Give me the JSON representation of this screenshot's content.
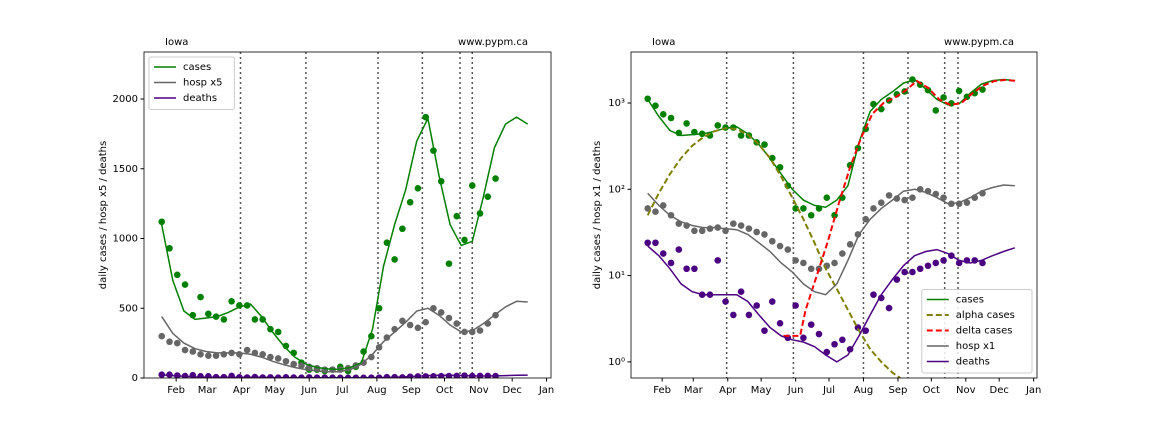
{
  "chart_data": [
    {
      "type": "line",
      "title": "Iowa",
      "annotation": "www.pypm.ca",
      "ylabel": "daily cases / hosp x5 / deaths",
      "yscale": "linear",
      "xlim": [
        2,
        369
      ],
      "ylim": [
        0,
        2337
      ],
      "yticks": [
        0,
        500,
        1000,
        1500,
        2000
      ],
      "xticks": [
        {
          "value": 31,
          "label": "Feb"
        },
        {
          "value": 59,
          "label": "Mar"
        },
        {
          "value": 90,
          "label": "Apr"
        },
        {
          "value": 120,
          "label": "May"
        },
        {
          "value": 151,
          "label": "Jun"
        },
        {
          "value": 181,
          "label": "Jul"
        },
        {
          "value": 212,
          "label": "Aug"
        },
        {
          "value": 243,
          "label": "Sep"
        },
        {
          "value": 273,
          "label": "Oct"
        },
        {
          "value": 304,
          "label": "Nov"
        },
        {
          "value": 334,
          "label": "Dec"
        },
        {
          "value": 365,
          "label": "Jan"
        }
      ],
      "vlines": [
        89,
        148,
        213,
        253,
        287,
        298
      ],
      "legend": "upper left",
      "series": [
        {
          "name": "cases",
          "color": "#008000",
          "dash": false,
          "x": [
            18,
            28,
            38,
            48,
            58,
            68,
            78,
            88,
            98,
            108,
            118,
            128,
            138,
            148,
            158,
            168,
            178,
            188,
            198,
            208,
            218,
            228,
            238,
            248,
            258,
            268,
            278,
            288,
            298,
            308,
            318,
            328,
            338,
            348
          ],
          "values": [
            1100,
            700,
            480,
            420,
            430,
            440,
            470,
            510,
            530,
            440,
            330,
            230,
            150,
            100,
            75,
            65,
            62,
            75,
            110,
            350,
            800,
            1100,
            1350,
            1700,
            1860,
            1450,
            1100,
            950,
            980,
            1300,
            1650,
            1820,
            1870,
            1820
          ]
        },
        {
          "name": "hosp x5",
          "color": "#666666",
          "dash": false,
          "x": [
            18,
            28,
            38,
            48,
            58,
            68,
            78,
            88,
            98,
            108,
            118,
            128,
            138,
            148,
            158,
            168,
            178,
            188,
            198,
            208,
            218,
            228,
            238,
            248,
            258,
            268,
            278,
            288,
            298,
            308,
            318,
            328,
            338,
            348
          ],
          "values": [
            440,
            320,
            250,
            210,
            190,
            180,
            180,
            180,
            170,
            150,
            120,
            95,
            75,
            60,
            50,
            45,
            45,
            60,
            100,
            170,
            260,
            330,
            400,
            480,
            500,
            450,
            380,
            330,
            340,
            390,
            450,
            510,
            550,
            545
          ]
        },
        {
          "name": "deaths",
          "color": "#4b0082",
          "dash": false,
          "x": [
            18,
            28,
            38,
            48,
            58,
            68,
            78,
            88,
            98,
            108,
            118,
            128,
            138,
            148,
            158,
            168,
            178,
            188,
            198,
            208,
            218,
            228,
            238,
            248,
            258,
            268,
            278,
            288,
            298,
            308,
            318,
            328,
            338,
            348
          ],
          "values": [
            22,
            17,
            12,
            8,
            6.5,
            6,
            6,
            6,
            6,
            5,
            3.5,
            2.5,
            2,
            1.8,
            1.7,
            1.5,
            1.2,
            1,
            1.2,
            2,
            3.5,
            6,
            9,
            13,
            17,
            19,
            20,
            18,
            15,
            14,
            15,
            17,
            19,
            21
          ]
        }
      ],
      "point_x": [
        18,
        25,
        32,
        39,
        46,
        53,
        60,
        67,
        74,
        81,
        88,
        95,
        102,
        109,
        116,
        123,
        130,
        137,
        144,
        151,
        158,
        165,
        172,
        179,
        186,
        193,
        200,
        207,
        214,
        221,
        228,
        235,
        242,
        249,
        256,
        263,
        270,
        277,
        284,
        291,
        298,
        305,
        312,
        319
      ],
      "points": [
        {
          "color": "#008000",
          "values": [
            1120,
            930,
            740,
            670,
            450,
            580,
            460,
            440,
            420,
            550,
            520,
            520,
            420,
            420,
            350,
            330,
            230,
            180,
            110,
            60,
            60,
            50,
            60,
            80,
            50,
            80,
            190,
            300,
            500,
            970,
            850,
            1070,
            1260,
            1360,
            1870,
            1630,
            1410,
            820,
            1160,
            990,
            1380,
            1180,
            1300,
            1430
          ]
        },
        {
          "color": "#666666",
          "values": [
            300,
            260,
            250,
            200,
            190,
            170,
            160,
            160,
            170,
            180,
            170,
            200,
            180,
            170,
            150,
            140,
            120,
            100,
            90,
            80,
            70,
            60,
            60,
            60,
            70,
            90,
            110,
            150,
            220,
            290,
            350,
            410,
            380,
            360,
            400,
            500,
            470,
            430,
            390,
            330,
            330,
            340,
            390,
            450
          ]
        },
        {
          "color": "#4b0082",
          "values": [
            24,
            24,
            18,
            14,
            20,
            12,
            12,
            6,
            6,
            15,
            5,
            3.5,
            6.5,
            3.5,
            4.5,
            2.3,
            5,
            2.8,
            1.9,
            4.5,
            1.9,
            2.7,
            2.1,
            1.3,
            1.6,
            1.8,
            1.4,
            2.5,
            2.3,
            6,
            5.5,
            4.2,
            9,
            11,
            11,
            12,
            13,
            14,
            15,
            17,
            14,
            15,
            15,
            14
          ]
        }
      ]
    },
    {
      "type": "line",
      "title": "Iowa",
      "annotation": "www.pypm.ca",
      "ylabel": "daily cases / hosp x1 / deaths",
      "yscale": "log",
      "xlim": [
        3,
        368
      ],
      "ylim": [
        0.65,
        3900
      ],
      "yticks": [
        {
          "value": 1,
          "label": "10⁰"
        },
        {
          "value": 10,
          "label": "10¹"
        },
        {
          "value": 100,
          "label": "10²"
        },
        {
          "value": 1000,
          "label": "10³"
        }
      ],
      "xticks": [
        {
          "value": 31,
          "label": "Feb"
        },
        {
          "value": 59,
          "label": "Mar"
        },
        {
          "value": 90,
          "label": "Apr"
        },
        {
          "value": 120,
          "label": "May"
        },
        {
          "value": 151,
          "label": "Jun"
        },
        {
          "value": 181,
          "label": "Jul"
        },
        {
          "value": 212,
          "label": "Aug"
        },
        {
          "value": 243,
          "label": "Sep"
        },
        {
          "value": 273,
          "label": "Oct"
        },
        {
          "value": 304,
          "label": "Nov"
        },
        {
          "value": 334,
          "label": "Dec"
        },
        {
          "value": 365,
          "label": "Jan"
        }
      ],
      "vlines": [
        89,
        149,
        212,
        252,
        285,
        297
      ],
      "legend": "lower right",
      "series": [
        {
          "name": "cases",
          "color": "#008000",
          "dash": false,
          "x": [
            18,
            28,
            38,
            48,
            58,
            68,
            78,
            88,
            98,
            108,
            118,
            128,
            138,
            148,
            158,
            168,
            178,
            188,
            198,
            208,
            218,
            228,
            238,
            248,
            258,
            268,
            278,
            288,
            298,
            308,
            318,
            328,
            338,
            348
          ],
          "values": [
            1100,
            700,
            480,
            420,
            430,
            440,
            470,
            510,
            530,
            440,
            330,
            230,
            150,
            100,
            75,
            65,
            62,
            75,
            110,
            350,
            800,
            1100,
            1350,
            1700,
            1860,
            1450,
            1100,
            950,
            980,
            1300,
            1650,
            1820,
            1870,
            1820
          ]
        },
        {
          "name": "alpha cases",
          "color": "#808000",
          "dash": true,
          "x": [
            18,
            28,
            38,
            48,
            58,
            68,
            78,
            88,
            98,
            108,
            118,
            128,
            138,
            148,
            158,
            168,
            178,
            188,
            198,
            208,
            218,
            228,
            238,
            245
          ],
          "values": [
            50,
            90,
            150,
            230,
            320,
            400,
            470,
            510,
            500,
            430,
            330,
            230,
            140,
            80,
            45,
            24,
            12,
            7,
            4,
            2.3,
            1.4,
            1,
            0.75,
            0.65
          ]
        },
        {
          "name": "delta cases",
          "color": "#ff0000",
          "dash": true,
          "x": [
            140,
            155,
            160,
            170,
            180,
            190,
            200,
            210,
            220,
            230,
            240,
            250,
            260,
            270,
            280,
            290,
            300,
            310,
            320,
            330,
            340,
            350
          ],
          "values": [
            2,
            2,
            4,
            10,
            25,
            70,
            180,
            400,
            750,
            1000,
            1150,
            1400,
            1800,
            1500,
            1100,
            950,
            1000,
            1300,
            1600,
            1800,
            1850,
            1800
          ]
        },
        {
          "name": "hosp x1",
          "color": "#666666",
          "dash": false,
          "x": [
            18,
            28,
            38,
            48,
            58,
            68,
            78,
            88,
            98,
            108,
            118,
            128,
            138,
            148,
            158,
            168,
            178,
            188,
            198,
            208,
            218,
            228,
            238,
            248,
            258,
            268,
            278,
            288,
            298,
            308,
            318,
            328,
            338,
            348
          ],
          "values": [
            90,
            65,
            50,
            42,
            38,
            36,
            36,
            35,
            34,
            30,
            24,
            19,
            14,
            11,
            8,
            6.5,
            6,
            8,
            15,
            30,
            45,
            60,
            75,
            95,
            100,
            92,
            80,
            68,
            70,
            80,
            95,
            105,
            112,
            110
          ]
        },
        {
          "name": "deaths",
          "color": "#4b0082",
          "dash": false,
          "x": [
            18,
            28,
            38,
            48,
            58,
            68,
            78,
            88,
            98,
            108,
            118,
            128,
            138,
            148,
            158,
            168,
            178,
            188,
            198,
            208,
            218,
            228,
            238,
            248,
            258,
            268,
            278,
            288,
            298,
            308,
            318,
            328,
            338,
            348
          ],
          "values": [
            22,
            17,
            12,
            8,
            6.5,
            6,
            6,
            6,
            6,
            5,
            3.5,
            2.5,
            2,
            1.8,
            1.7,
            1.5,
            1.2,
            1,
            1.2,
            2,
            3.5,
            6,
            9,
            13,
            17,
            19,
            20,
            18,
            15,
            14,
            15,
            17,
            19,
            21
          ]
        }
      ],
      "point_x": [
        18,
        25,
        32,
        39,
        46,
        53,
        60,
        67,
        74,
        81,
        88,
        95,
        102,
        109,
        116,
        123,
        130,
        137,
        144,
        151,
        158,
        165,
        172,
        179,
        186,
        193,
        200,
        207,
        214,
        221,
        228,
        235,
        242,
        249,
        256,
        263,
        270,
        277,
        284,
        291,
        298,
        305,
        312,
        319
      ],
      "points": [
        {
          "color": "#008000",
          "values": [
            1120,
            930,
            740,
            670,
            450,
            580,
            460,
            440,
            420,
            550,
            520,
            520,
            420,
            420,
            350,
            330,
            230,
            180,
            110,
            60,
            60,
            50,
            60,
            80,
            50,
            80,
            190,
            300,
            500,
            970,
            850,
            1070,
            1260,
            1360,
            1870,
            1630,
            1410,
            820,
            1160,
            990,
            1380,
            1180,
            1300,
            1430
          ]
        },
        {
          "color": "#666666",
          "values": [
            60,
            55,
            65,
            50,
            40,
            38,
            33,
            33,
            35,
            36,
            33,
            40,
            38,
            35,
            32,
            30,
            25,
            22,
            20,
            15,
            14,
            12,
            12,
            13,
            14,
            18,
            23,
            30,
            45,
            60,
            70,
            85,
            78,
            75,
            80,
            100,
            95,
            88,
            80,
            68,
            68,
            70,
            80,
            90
          ]
        },
        {
          "color": "#4b0082",
          "values": [
            24,
            24,
            18,
            14,
            20,
            12,
            12,
            6,
            6,
            15,
            5,
            3.5,
            6.5,
            3.5,
            4.5,
            2.3,
            5,
            2.8,
            1.9,
            4.5,
            1.9,
            2.7,
            2.1,
            1.3,
            1.6,
            1.8,
            1.4,
            2.5,
            2.3,
            6,
            5.5,
            4.2,
            9,
            11,
            11,
            12,
            13,
            14,
            15,
            17,
            14,
            15,
            15,
            14
          ]
        }
      ]
    }
  ]
}
